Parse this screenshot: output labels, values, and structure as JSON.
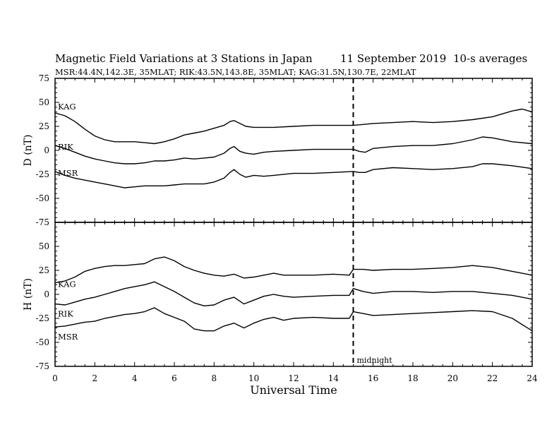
{
  "header": {
    "title": "Magnetic Field Variations at 3 Stations in Japan",
    "date": "11 September 2019",
    "averaging": "10-s averages",
    "stations_line": "MSR:44.4N,142.3E, 35MLAT;  RIK:43.5N,143.8E, 35MLAT;  KAG:31.5N,130.7E, 22MLAT"
  },
  "chart_data": [
    {
      "type": "line",
      "panel": "top",
      "ylabel": "D (nT)",
      "xlabel": "",
      "xlim": [
        0,
        24
      ],
      "ylim": [
        -75,
        75
      ],
      "yticks": [
        -75,
        -50,
        -25,
        0,
        25,
        50,
        75
      ],
      "xticks": [
        0,
        2,
        4,
        6,
        8,
        10,
        12,
        14,
        16,
        18,
        20,
        22,
        24
      ],
      "grid": false,
      "series": [
        {
          "name": "KAG",
          "x": [
            0,
            0.5,
            1,
            1.5,
            2,
            2.5,
            3,
            3.5,
            4,
            4.5,
            5,
            5.5,
            6,
            6.5,
            7,
            7.5,
            8,
            8.5,
            8.8,
            9,
            9.3,
            9.6,
            10,
            10.5,
            11,
            12,
            13,
            14,
            15,
            15.5,
            16,
            17,
            18,
            19,
            20,
            21,
            22,
            23,
            23.5,
            24
          ],
          "y": [
            39,
            36,
            30,
            22,
            15,
            11,
            9,
            9,
            9,
            8,
            7,
            9,
            12,
            16,
            18,
            20,
            23,
            26,
            30,
            31,
            28,
            25,
            24,
            24,
            24,
            25,
            26,
            26,
            26,
            27,
            28,
            29,
            30,
            29,
            30,
            32,
            35,
            41,
            43,
            40
          ]
        },
        {
          "name": "RIK",
          "x": [
            0,
            0.5,
            1,
            1.5,
            2,
            2.5,
            3,
            3.5,
            4,
            4.5,
            5,
            5.5,
            6,
            6.5,
            7,
            7.5,
            8,
            8.5,
            8.8,
            9,
            9.3,
            9.6,
            10,
            10.5,
            11,
            12,
            13,
            14,
            15,
            15.3,
            15.6,
            16,
            17,
            18,
            19,
            20,
            21,
            21.5,
            22,
            23,
            24
          ],
          "y": [
            5,
            2,
            -2,
            -6,
            -9,
            -11,
            -13,
            -14,
            -14,
            -13,
            -11,
            -11,
            -10,
            -8,
            -9,
            -8,
            -7,
            -3,
            2,
            4,
            -1,
            -3,
            -4,
            -2,
            -1,
            0,
            1,
            1,
            1,
            -1,
            -2,
            2,
            4,
            5,
            5,
            7,
            11,
            14,
            13,
            9,
            7
          ]
        },
        {
          "name": "MSR",
          "x": [
            0,
            0.5,
            1,
            1.5,
            2,
            2.5,
            3,
            3.5,
            4,
            4.5,
            5,
            5.5,
            6,
            6.5,
            7,
            7.5,
            8,
            8.5,
            8.8,
            9,
            9.3,
            9.6,
            10,
            10.5,
            11,
            12,
            13,
            14,
            15,
            15.3,
            15.6,
            16,
            17,
            18,
            19,
            20,
            21,
            21.5,
            22,
            23,
            24
          ],
          "y": [
            -22,
            -26,
            -29,
            -31,
            -33,
            -35,
            -37,
            -39,
            -38,
            -37,
            -37,
            -37,
            -36,
            -35,
            -35,
            -35,
            -33,
            -29,
            -23,
            -20,
            -25,
            -28,
            -26,
            -27,
            -26,
            -24,
            -24,
            -23,
            -22,
            -23,
            -23,
            -20,
            -18,
            -19,
            -20,
            -19,
            -17,
            -14,
            -14,
            -16,
            -19
          ]
        }
      ]
    },
    {
      "type": "line",
      "panel": "bottom",
      "ylabel": "H (nT)",
      "xlabel": "Universal Time",
      "xlim": [
        0,
        24
      ],
      "ylim": [
        -75,
        75
      ],
      "yticks": [
        -75,
        -50,
        -25,
        0,
        25,
        50,
        75
      ],
      "xticks": [
        0,
        2,
        4,
        6,
        8,
        10,
        12,
        14,
        16,
        18,
        20,
        22,
        24
      ],
      "grid": false,
      "series": [
        {
          "name": "KAG",
          "x": [
            0,
            0.5,
            1,
            1.5,
            2,
            2.5,
            3,
            3.5,
            4,
            4.5,
            5,
            5.5,
            6,
            6.5,
            7,
            7.5,
            8,
            8.5,
            9,
            9.5,
            10,
            10.5,
            11,
            11.5,
            12,
            13,
            14,
            14.8,
            15,
            15.5,
            16,
            17,
            18,
            19,
            20,
            21,
            22,
            23,
            24
          ],
          "y": [
            12,
            14,
            18,
            24,
            27,
            29,
            30,
            30,
            31,
            32,
            37,
            39,
            35,
            29,
            25,
            22,
            20,
            19,
            21,
            17,
            18,
            20,
            22,
            20,
            20,
            20,
            21,
            20,
            26,
            26,
            25,
            26,
            26,
            27,
            28,
            30,
            28,
            24,
            20
          ]
        },
        {
          "name": "RIK",
          "x": [
            0,
            0.5,
            1,
            1.5,
            2,
            2.5,
            3,
            3.5,
            4,
            4.5,
            5,
            5.5,
            6,
            6.5,
            7,
            7.5,
            8,
            8.5,
            9,
            9.5,
            10,
            10.5,
            11,
            11.5,
            12,
            13,
            14,
            14.8,
            15,
            15.5,
            16,
            17,
            18,
            19,
            20,
            21,
            22,
            23,
            24
          ],
          "y": [
            -10,
            -11,
            -8,
            -5,
            -3,
            0,
            3,
            6,
            8,
            10,
            13,
            8,
            3,
            -3,
            -9,
            -12,
            -11,
            -6,
            -3,
            -10,
            -6,
            -2,
            0,
            -2,
            -3,
            -2,
            -1,
            -1,
            6,
            3,
            1,
            3,
            3,
            2,
            3,
            3,
            1,
            -1,
            -5
          ]
        },
        {
          "name": "MSR",
          "x": [
            0,
            0.5,
            1,
            1.5,
            2,
            2.5,
            3,
            3.5,
            4,
            4.5,
            5,
            5.5,
            6,
            6.5,
            7,
            7.5,
            8,
            8.5,
            9,
            9.5,
            10,
            10.5,
            11,
            11.5,
            12,
            13,
            14,
            14.8,
            15,
            15.5,
            16,
            17,
            18,
            19,
            20,
            21,
            22,
            23,
            24
          ],
          "y": [
            -34,
            -33,
            -31,
            -29,
            -28,
            -25,
            -23,
            -21,
            -20,
            -18,
            -14,
            -20,
            -24,
            -28,
            -36,
            -38,
            -38,
            -33,
            -30,
            -35,
            -30,
            -26,
            -24,
            -27,
            -25,
            -24,
            -25,
            -25,
            -18,
            -20,
            -22,
            -21,
            -20,
            -19,
            -18,
            -17,
            -18,
            -25,
            -38
          ]
        }
      ]
    }
  ],
  "annotation": {
    "label": "midnight",
    "x": 15
  }
}
